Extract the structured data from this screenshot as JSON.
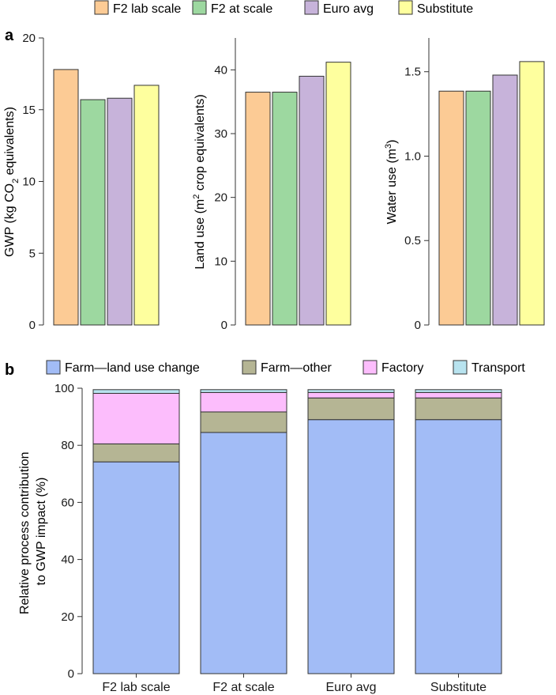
{
  "panel_labels": {
    "a": "a",
    "b": "b"
  },
  "colors": {
    "f2_lab": "#fccb95",
    "f2_scale": "#9dd8a0",
    "euro": "#c7b3da",
    "substitute": "#feff9e",
    "land_use_change": "#a2bcf6",
    "farm_other": "#b5b594",
    "factory": "#fcbdfc",
    "transport": "#b8e3ef"
  },
  "chart_data": [
    {
      "type": "bar",
      "panel": "a",
      "legend": [
        "F2 lab scale",
        "F2 at scale",
        "Euro avg",
        "Substitute"
      ],
      "categories": [
        "F2 lab scale",
        "F2 at scale",
        "Euro avg",
        "Substitute"
      ],
      "values": [
        17.8,
        15.7,
        15.8,
        16.7
      ],
      "ylabel_pre": "GWP (kg CO",
      "ylabel_sub": "2",
      "ylabel_post": " equivalents)",
      "ylim": [
        0,
        20
      ],
      "yticks": [
        0,
        5,
        10,
        15,
        20
      ],
      "ytick_labels": [
        "0",
        "5",
        "10",
        "15",
        "20"
      ]
    },
    {
      "type": "bar",
      "panel": "a",
      "categories": [
        "F2 lab scale",
        "F2 at scale",
        "Euro avg",
        "Substitute"
      ],
      "values": [
        36.5,
        36.5,
        39.0,
        41.2
      ],
      "ylabel_pre": "Land use (m",
      "ylabel_sup": "2",
      "ylabel_post": " crop equivalents)",
      "ylim": [
        0,
        45
      ],
      "yticks": [
        0,
        10,
        20,
        30,
        40
      ],
      "ytick_labels": [
        "0",
        "10",
        "20",
        "30",
        "40"
      ]
    },
    {
      "type": "bar",
      "panel": "a",
      "categories": [
        "F2 lab scale",
        "F2 at scale",
        "Euro avg",
        "Substitute"
      ],
      "values": [
        1.385,
        1.385,
        1.48,
        1.56
      ],
      "ylabel_pre": "Water use (m",
      "ylabel_sup": "3",
      "ylabel_post": ")",
      "ylim": [
        0,
        1.7
      ],
      "yticks": [
        0,
        0.5,
        1.0,
        1.5
      ],
      "ytick_labels": [
        "0",
        "0.5",
        "1.0",
        "1.5"
      ]
    },
    {
      "type": "bar",
      "stacked": true,
      "panel": "b",
      "categories": [
        "F2 lab scale",
        "F2 at scale",
        "Euro avg",
        "Substitute"
      ],
      "series": [
        {
          "name": "Farm—land use change",
          "values": [
            74.2,
            84.5,
            89.0,
            89.0
          ]
        },
        {
          "name": "Farm—other",
          "values": [
            6.3,
            7.2,
            7.6,
            7.6
          ]
        },
        {
          "name": "Factory",
          "values": [
            17.7,
            6.8,
            1.9,
            1.9
          ]
        },
        {
          "name": "Transport",
          "values": [
            1.3,
            1.0,
            1.0,
            1.0
          ]
        }
      ],
      "ylabel_line1": "Relative process contribution",
      "ylabel_line2": "to GWP impact (%)",
      "ylim": [
        0,
        100
      ],
      "yticks": [
        0,
        20,
        40,
        60,
        80,
        100
      ],
      "ytick_labels": [
        "0",
        "20",
        "40",
        "60",
        "80",
        "100"
      ]
    }
  ]
}
